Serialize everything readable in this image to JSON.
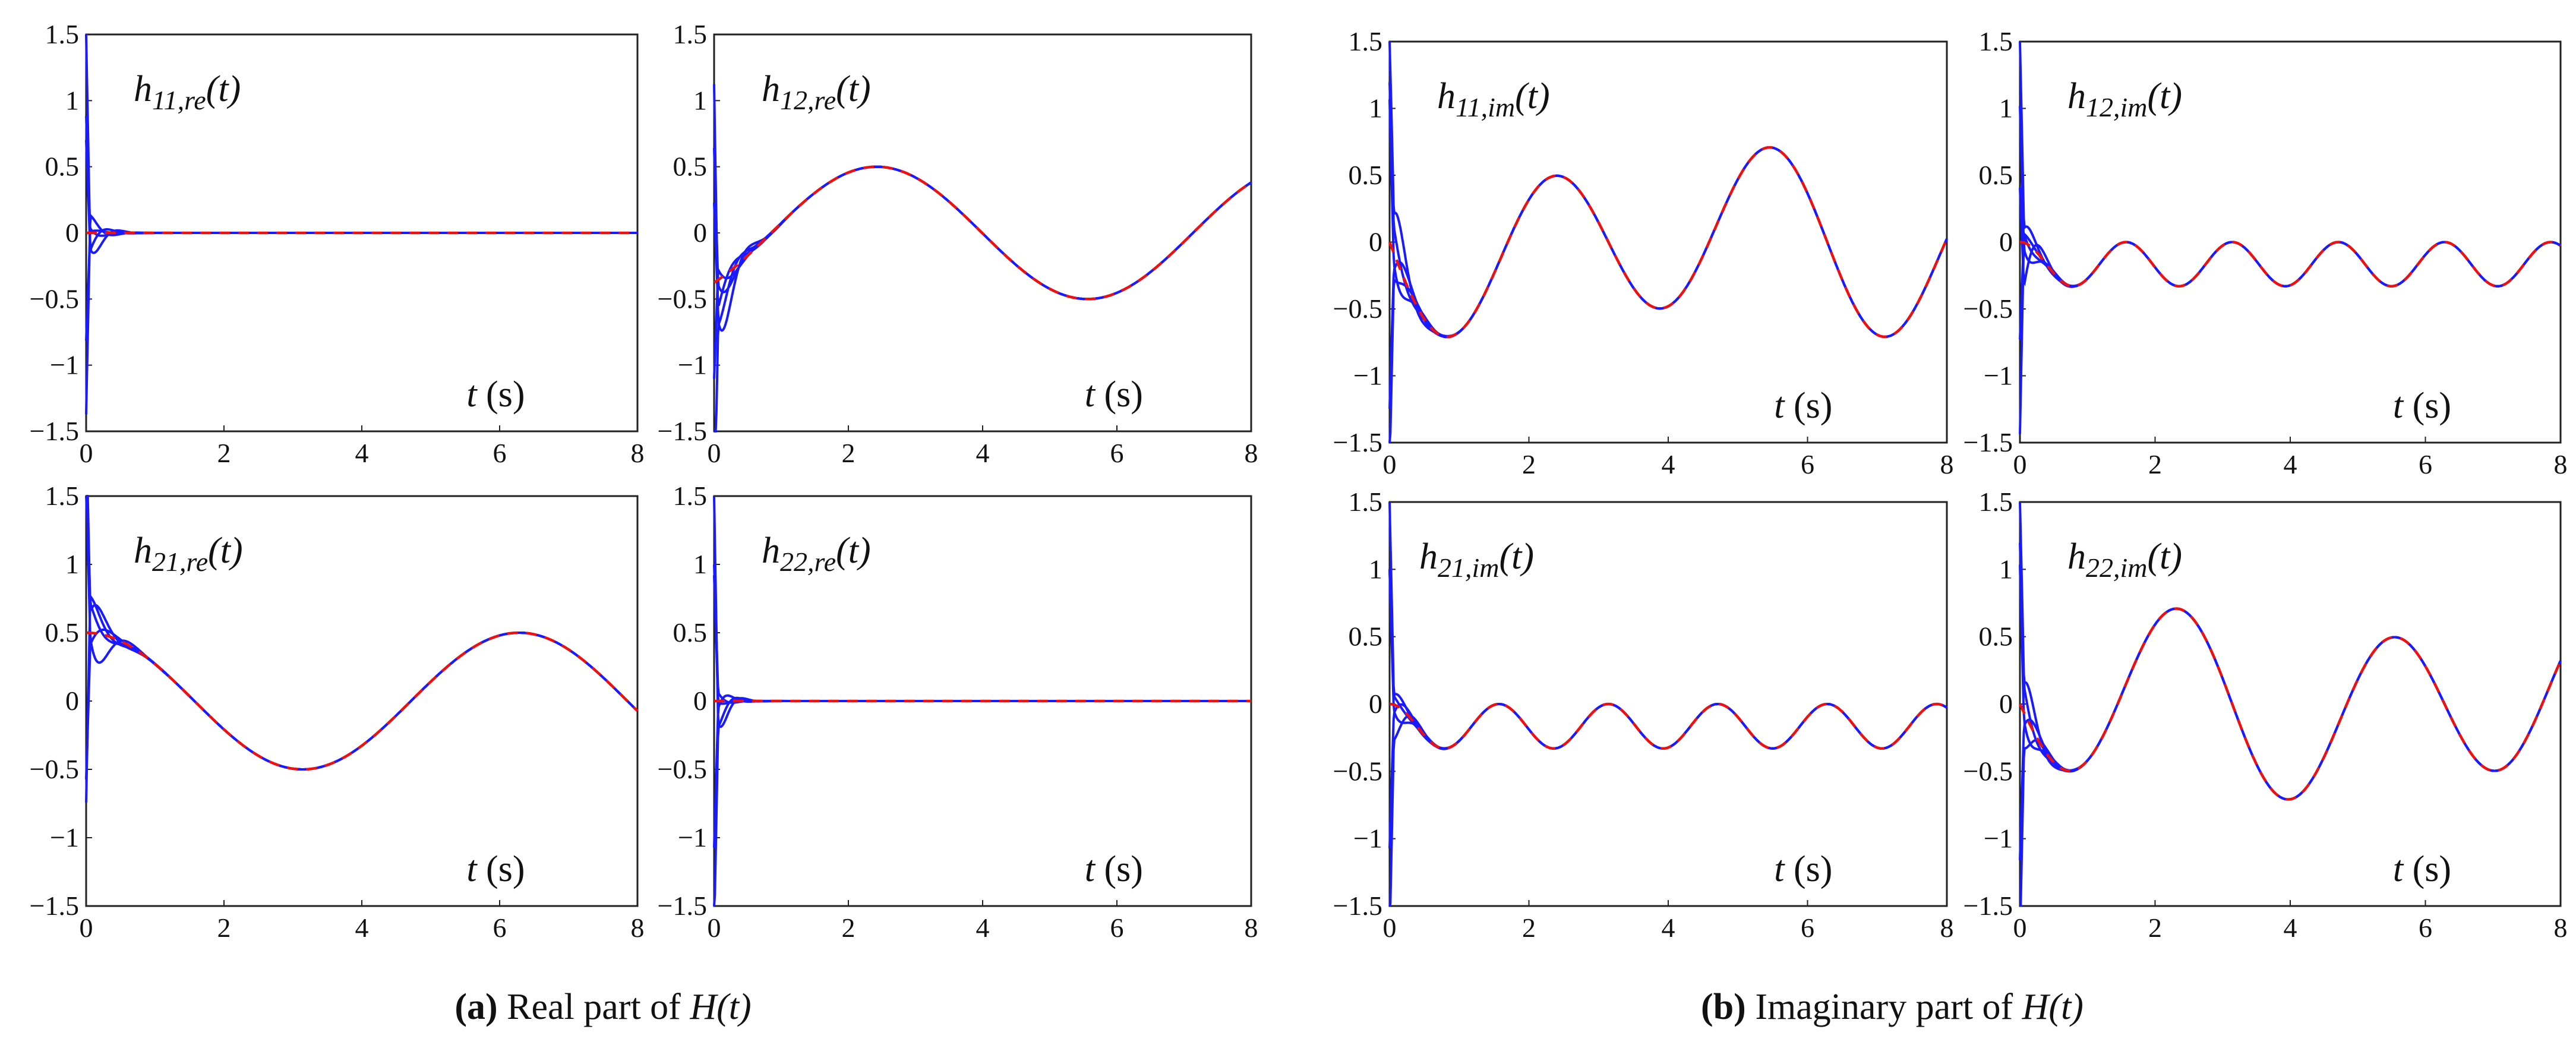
{
  "colors": {
    "estimate": "#1a1aff",
    "true": "#ee1111",
    "axis": "#222222"
  },
  "captions": [
    {
      "label": "(a)",
      "text": " Real part of ",
      "symbol": "H(t)"
    },
    {
      "label": "(b)",
      "text": " Imaginary part of ",
      "symbol": "H(t)"
    }
  ],
  "chart_data": [
    {
      "type": "line",
      "label_main": "h",
      "label_sub": "11,re",
      "label_arg": "(t)",
      "xlabel_var": "t",
      "xlabel_unit": " (s)",
      "xlim": [
        0,
        8
      ],
      "ylim": [
        -1.5,
        1.5
      ],
      "xticks": [
        "0",
        "2",
        "4",
        "6",
        "8"
      ],
      "yticks": [
        "1.5",
        "1",
        "0.5",
        "0",
        "−0.5",
        "−1",
        "−1.5"
      ],
      "true_signal": {
        "kind": "sum",
        "terms": []
      },
      "transient": {
        "amps": [
          -0.35,
          0.2,
          -0.2,
          0.1,
          -0.05
        ],
        "rate": 6.0,
        "freq": 9.0
      }
    },
    {
      "type": "line",
      "label_main": "h",
      "label_sub": "12,re",
      "label_arg": "(t)",
      "xlabel_var": "t",
      "xlabel_unit": " (s)",
      "xlim": [
        0,
        8
      ],
      "ylim": [
        -1.5,
        1.5
      ],
      "xticks": [
        "0",
        "2",
        "4",
        "6",
        "8"
      ],
      "yticks": [
        "1.5",
        "1",
        "0.5",
        "0",
        "−0.5",
        "−1",
        "−1.5"
      ],
      "true_signal": {
        "kind": "sum",
        "terms": [
          {
            "fn": "sin",
            "amp": 0.5,
            "freq": 1.0,
            "phase": -0.85
          }
        ]
      },
      "transient": {
        "amps": [
          -0.9,
          -0.5,
          -0.3,
          0.2,
          0.35
        ],
        "rate": 5.0,
        "freq": 8.0
      }
    },
    {
      "type": "line",
      "label_main": "h",
      "label_sub": "21,re",
      "label_arg": "(t)",
      "xlabel_var": "t",
      "xlabel_unit": " (s)",
      "xlim": [
        0,
        8
      ],
      "ylim": [
        -1.5,
        1.5
      ],
      "xticks": [
        "0",
        "2",
        "4",
        "6",
        "8"
      ],
      "yticks": [
        "1.5",
        "1",
        "0.5",
        "0",
        "−0.5",
        "−1",
        "−1.5"
      ],
      "true_signal": {
        "kind": "sum",
        "terms": [
          {
            "fn": "cos",
            "amp": 0.5,
            "freq": 1.0,
            "phase": 0
          }
        ]
      },
      "transient": {
        "amps": [
          0.5,
          0.4,
          0.3,
          -0.2,
          0.65
        ],
        "rate": 5.0,
        "freq": 7.0
      }
    },
    {
      "type": "line",
      "label_main": "h",
      "label_sub": "22,re",
      "label_arg": "(t)",
      "xlabel_var": "t",
      "xlabel_unit": " (s)",
      "xlim": [
        0,
        8
      ],
      "ylim": [
        -1.5,
        1.5
      ],
      "xticks": [
        "0",
        "2",
        "4",
        "6",
        "8"
      ],
      "yticks": [
        "1.5",
        "1",
        "0.5",
        "0",
        "−0.5",
        "−1",
        "−1.5"
      ],
      "true_signal": {
        "kind": "sum",
        "terms": []
      },
      "transient": {
        "amps": [
          -0.45,
          -0.3,
          0.1,
          -0.2,
          0.06
        ],
        "rate": 7.0,
        "freq": 10.0
      }
    },
    {
      "type": "line",
      "label_main": "h",
      "label_sub": "11,im",
      "label_arg": "(t)",
      "xlabel_var": "t",
      "xlabel_unit": " (s)",
      "xlim": [
        0,
        8
      ],
      "ylim": [
        -1.5,
        1.5
      ],
      "xticks": [
        "0",
        "2",
        "4",
        "6",
        "8"
      ],
      "yticks": [
        "1.5",
        "1",
        "0.5",
        "0",
        "−0.5",
        "−1",
        "−1.5"
      ],
      "true_signal": {
        "kind": "sum",
        "terms": [
          {
            "fn": "sin",
            "amp": -0.6,
            "freq": 2.0,
            "phase": 0
          },
          {
            "fn": "sin",
            "amp": -0.15,
            "freq": 1.0,
            "phase": 0
          }
        ]
      },
      "transient": {
        "amps": [
          0.8,
          -0.3,
          0.3,
          -0.4,
          0.5
        ],
        "rate": 6.0,
        "freq": 9.0
      }
    },
    {
      "type": "line",
      "label_main": "h",
      "label_sub": "12,im",
      "label_arg": "(t)",
      "xlabel_var": "t",
      "xlabel_unit": " (s)",
      "xlim": [
        0,
        8
      ],
      "ylim": [
        -1.5,
        1.5
      ],
      "xticks": [
        "0",
        "2",
        "4",
        "6",
        "8"
      ],
      "yticks": [
        "1.5",
        "1",
        "0.5",
        "0",
        "−0.5",
        "−1",
        "−1.5"
      ],
      "true_signal": {
        "kind": "offsetcos",
        "offset": -0.165,
        "amp": 0.165,
        "freq": 4.0
      },
      "transient": {
        "amps": [
          0.3,
          0.1,
          -0.5,
          0.2,
          0.35
        ],
        "rate": 6.0,
        "freq": 9.0
      }
    },
    {
      "type": "line",
      "label_main": "h",
      "label_sub": "21,im",
      "label_arg": "(t)",
      "xlabel_var": "t",
      "xlabel_unit": " (s)",
      "xlim": [
        0,
        8
      ],
      "ylim": [
        -1.5,
        1.5
      ],
      "xticks": [
        "0",
        "2",
        "4",
        "6",
        "8"
      ],
      "yticks": [
        "1.5",
        "1",
        "0.5",
        "0",
        "−0.5",
        "−1",
        "−1.5"
      ],
      "true_signal": {
        "kind": "offsetcos",
        "offset": -0.165,
        "amp": 0.165,
        "freq": 4.0
      },
      "transient": {
        "amps": [
          0.2,
          -0.4,
          0.1,
          -0.2,
          0.3
        ],
        "rate": 6.0,
        "freq": 9.0
      }
    },
    {
      "type": "line",
      "label_main": "h",
      "label_sub": "22,im",
      "label_arg": "(t)",
      "xlabel_var": "t",
      "xlabel_unit": " (s)",
      "xlim": [
        0,
        8
      ],
      "ylim": [
        -1.5,
        1.5
      ],
      "xticks": [
        "0",
        "2",
        "4",
        "6",
        "8"
      ],
      "yticks": [
        "1.5",
        "1",
        "0.5",
        "0",
        "−0.5",
        "−1",
        "−1.5"
      ],
      "true_signal": {
        "kind": "sum",
        "terms": [
          {
            "fn": "sin",
            "amp": -0.6,
            "freq": 2.0,
            "phase": 0
          },
          {
            "fn": "sin",
            "amp": 0.15,
            "freq": 1.0,
            "phase": 0
          }
        ]
      },
      "transient": {
        "amps": [
          0.6,
          -0.4,
          0.3,
          -0.3,
          0.4
        ],
        "rate": 6.0,
        "freq": 9.0
      }
    }
  ]
}
